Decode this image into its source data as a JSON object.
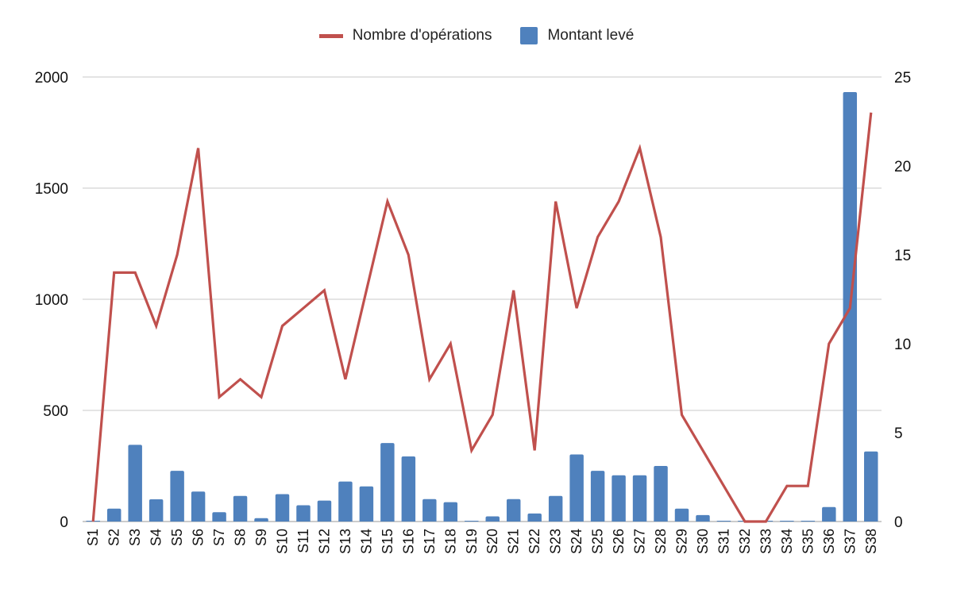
{
  "legend": {
    "line_label": "Nombre d'opérations",
    "bar_label": "Montant levé"
  },
  "colors": {
    "line": "#c0504d",
    "bar": "#4f81bd",
    "grid": "#c8c8c8"
  },
  "chart_data": {
    "type": "bar",
    "title": "",
    "xlabel": "",
    "ylabel": "",
    "legend_position": "top-center",
    "grid": true,
    "categories": [
      "S1",
      "S2",
      "S3",
      "S4",
      "S5",
      "S6",
      "S7",
      "S8",
      "S9",
      "S10",
      "S11",
      "S12",
      "S13",
      "S14",
      "S15",
      "S16",
      "S17",
      "S18",
      "S19",
      "S20",
      "S21",
      "S22",
      "S23",
      "S24",
      "S25",
      "S26",
      "S27",
      "S28",
      "S29",
      "S30",
      "S31",
      "S32",
      "S33",
      "S34",
      "S35",
      "S36",
      "S37",
      "S38"
    ],
    "ylim_left": [
      0,
      2000
    ],
    "yticks_left": [
      "0",
      "500",
      "1000",
      "1500",
      "2000"
    ],
    "ylim_right": [
      0,
      25
    ],
    "yticks_right": [
      "0",
      "5",
      "10",
      "15",
      "20",
      "25"
    ],
    "series": [
      {
        "name": "Montant levé",
        "type": "bar",
        "axis": "left",
        "values": [
          0,
          58,
          345,
          100,
          228,
          135,
          42,
          115,
          15,
          123,
          73,
          94,
          180,
          158,
          353,
          293,
          101,
          87,
          0,
          23,
          101,
          36,
          115,
          302,
          228,
          208,
          208,
          250,
          58,
          29,
          0,
          0,
          0,
          0,
          0,
          65,
          1932,
          315
        ]
      },
      {
        "name": "Nombre d'opérations",
        "type": "line",
        "axis": "right",
        "values": [
          0,
          14,
          14,
          11,
          15,
          21,
          7,
          8,
          7,
          11,
          12,
          13,
          8,
          13,
          18,
          15,
          8,
          10,
          4,
          6,
          13,
          4,
          18,
          12,
          16,
          18,
          21,
          16,
          6,
          4,
          2,
          0,
          0,
          2,
          2,
          10,
          12,
          23
        ]
      }
    ]
  }
}
